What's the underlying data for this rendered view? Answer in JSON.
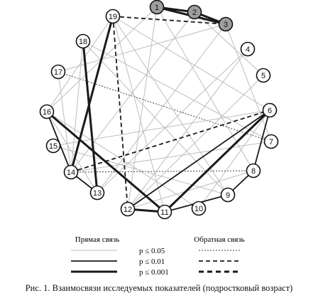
{
  "nodes": [
    {
      "id": "1",
      "highlighted": true
    },
    {
      "id": "2",
      "highlighted": true
    },
    {
      "id": "3",
      "highlighted": true
    },
    {
      "id": "4",
      "highlighted": false
    },
    {
      "id": "5",
      "highlighted": false
    },
    {
      "id": "6",
      "highlighted": false
    },
    {
      "id": "7",
      "highlighted": false
    },
    {
      "id": "8",
      "highlighted": false
    },
    {
      "id": "9",
      "highlighted": false
    },
    {
      "id": "10",
      "highlighted": false
    },
    {
      "id": "11",
      "highlighted": false
    },
    {
      "id": "12",
      "highlighted": false
    },
    {
      "id": "13",
      "highlighted": false
    },
    {
      "id": "14",
      "highlighted": false
    },
    {
      "id": "15",
      "highlighted": false
    },
    {
      "id": "16",
      "highlighted": false
    },
    {
      "id": "17",
      "highlighted": false
    },
    {
      "id": "18",
      "highlighted": false
    },
    {
      "id": "19",
      "highlighted": false
    }
  ],
  "edges": [
    {
      "from": "1",
      "to": "2",
      "relation": "direct",
      "level": "0.001"
    },
    {
      "from": "2",
      "to": "3",
      "relation": "direct",
      "level": "0.001"
    },
    {
      "from": "1",
      "to": "3",
      "relation": "direct",
      "level": "0.001"
    },
    {
      "from": "19",
      "to": "3",
      "relation": "inverse",
      "level": "0.01"
    },
    {
      "from": "19",
      "to": "12",
      "relation": "inverse",
      "level": "0.01"
    },
    {
      "from": "14",
      "to": "6",
      "relation": "inverse",
      "level": "0.01"
    },
    {
      "from": "17",
      "to": "7",
      "relation": "inverse",
      "level": "0.05"
    },
    {
      "from": "14",
      "to": "8",
      "relation": "inverse",
      "level": "0.05"
    },
    {
      "from": "19",
      "to": "14",
      "relation": "direct",
      "level": "0.001"
    },
    {
      "from": "18",
      "to": "13",
      "relation": "direct",
      "level": "0.001"
    },
    {
      "from": "16",
      "to": "11",
      "relation": "direct",
      "level": "0.001"
    },
    {
      "from": "12",
      "to": "11",
      "relation": "direct",
      "level": "0.001"
    },
    {
      "from": "11",
      "to": "6",
      "relation": "direct",
      "level": "0.001"
    },
    {
      "from": "12",
      "to": "6",
      "relation": "direct",
      "level": "0.01"
    },
    {
      "from": "8",
      "to": "9",
      "relation": "direct",
      "level": "0.01"
    },
    {
      "from": "9",
      "to": "11",
      "relation": "direct",
      "level": "0.01"
    },
    {
      "from": "8",
      "to": "6",
      "relation": "direct",
      "level": "0.01"
    },
    {
      "from": "16",
      "to": "14",
      "relation": "direct",
      "level": "0.01"
    },
    {
      "from": "14",
      "to": "13",
      "relation": "direct",
      "level": "0.01"
    },
    {
      "from": "18",
      "to": "14",
      "relation": "direct",
      "level": "0.05"
    },
    {
      "from": "16",
      "to": "19",
      "relation": "direct",
      "level": "0.05"
    },
    {
      "from": "16",
      "to": "1",
      "relation": "direct",
      "level": "0.05"
    },
    {
      "from": "16",
      "to": "13",
      "relation": "direct",
      "level": "0.05"
    },
    {
      "from": "17",
      "to": "14",
      "relation": "direct",
      "level": "0.05"
    },
    {
      "from": "19",
      "to": "9",
      "relation": "direct",
      "level": "0.05"
    },
    {
      "from": "19",
      "to": "11",
      "relation": "direct",
      "level": "0.05"
    },
    {
      "from": "3",
      "to": "7",
      "relation": "direct",
      "level": "0.05"
    },
    {
      "from": "4",
      "to": "12",
      "relation": "direct",
      "level": "0.05"
    },
    {
      "from": "1",
      "to": "12",
      "relation": "direct",
      "level": "0.05"
    },
    {
      "from": "2",
      "to": "14",
      "relation": "direct",
      "level": "0.05"
    },
    {
      "from": "3",
      "to": "13",
      "relation": "direct",
      "level": "0.05"
    },
    {
      "from": "18",
      "to": "7",
      "relation": "direct",
      "level": "0.05"
    },
    {
      "from": "15",
      "to": "6",
      "relation": "direct",
      "level": "0.05"
    },
    {
      "from": "16",
      "to": "10",
      "relation": "direct",
      "level": "0.05"
    },
    {
      "from": "14",
      "to": "7",
      "relation": "direct",
      "level": "0.05"
    },
    {
      "from": "1",
      "to": "8",
      "relation": "direct",
      "level": "0.05"
    },
    {
      "from": "12",
      "to": "8",
      "relation": "direct",
      "level": "0.05"
    },
    {
      "from": "10",
      "to": "6",
      "relation": "direct",
      "level": "0.05"
    },
    {
      "from": "18",
      "to": "9",
      "relation": "direct",
      "level": "0.05"
    },
    {
      "from": "2",
      "to": "5",
      "relation": "direct",
      "level": "0.05"
    },
    {
      "from": "19",
      "to": "6",
      "relation": "direct",
      "level": "0.05"
    },
    {
      "from": "13",
      "to": "4",
      "relation": "direct",
      "level": "0.05"
    },
    {
      "from": "15",
      "to": "9",
      "relation": "direct",
      "level": "0.05"
    },
    {
      "from": "17",
      "to": "3",
      "relation": "direct",
      "level": "0.05"
    },
    {
      "from": "12",
      "to": "5",
      "relation": "direct",
      "level": "0.05"
    }
  ],
  "legend": {
    "direct_title": "Прямая связь",
    "inverse_title": "Обратная связь",
    "levels": [
      {
        "key": "0.05",
        "label": "p ≤ 0.05"
      },
      {
        "key": "0.01",
        "label": "p ≤ 0.01"
      },
      {
        "key": "0.001",
        "label": "p ≤ 0.001"
      }
    ]
  },
  "caption": "Рис. 1. Взаимосвязи исследуемых показателей (подростковый возраст)",
  "colors": {
    "weak_line": "#bdbdbd",
    "strong_line": "#1a1a1a",
    "highlight_fill": "#9e9e9e",
    "node_fill": "#ffffff",
    "node_stroke": "#111111"
  }
}
